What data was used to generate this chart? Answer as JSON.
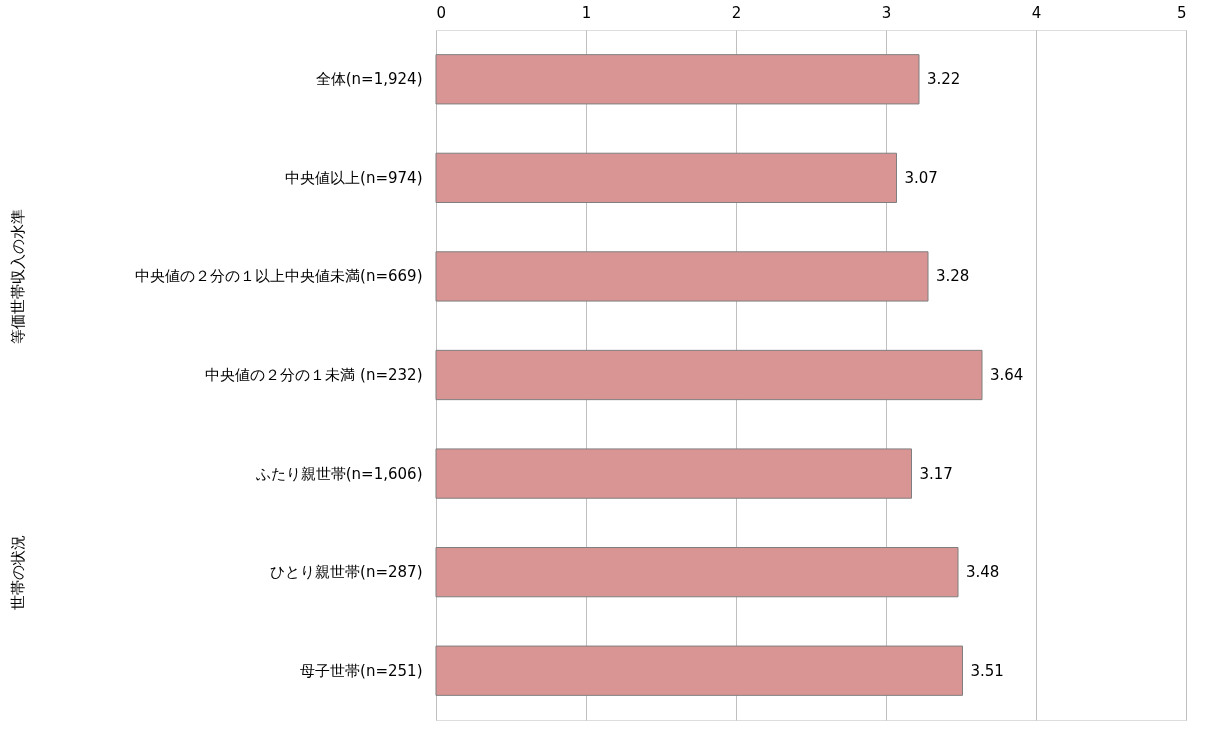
{
  "chart_data": {
    "type": "bar",
    "orientation": "horizontal",
    "categories": [
      "全体(n=1,924)",
      "中央値以上(n=974)",
      "中央値の２分の１以上中央値未満(n=669)",
      "中央値の２分の１未満 (n=232)",
      "ふたり親世帯(n=1,606)",
      "ひとり親世帯(n=287)",
      "母子世帯(n=251)"
    ],
    "values": [
      3.22,
      3.07,
      3.28,
      3.64,
      3.17,
      3.48,
      3.51
    ],
    "color": "#d99594",
    "xlim": [
      0,
      5
    ],
    "xticks": [
      0,
      1,
      2,
      3,
      4,
      5
    ],
    "grid": "x",
    "data_labels": true,
    "annotations": [
      "等価世帯収入の水準",
      "世帯の状況"
    ]
  }
}
